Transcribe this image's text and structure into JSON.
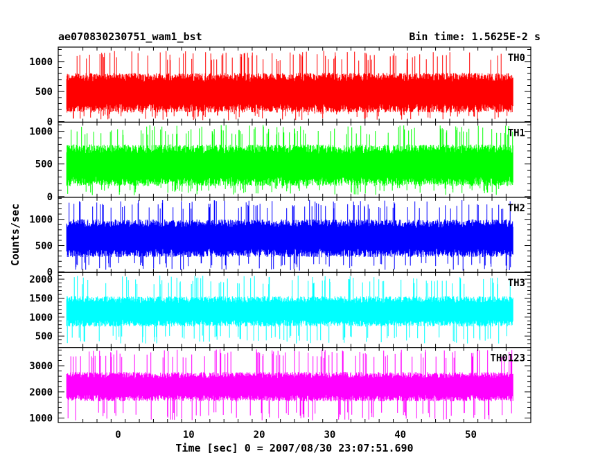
{
  "header": {
    "title_left": "ae070830230751_wam1_bst",
    "title_right": "Bin time: 1.5625E-2 s"
  },
  "axes": {
    "ylabel": "Counts/sec",
    "xlabel": "Time [sec] 0 = 2007/08/30 23:07:51.690"
  },
  "chart_data": {
    "type": "line",
    "x_range": [
      -8.5,
      58.5
    ],
    "x_data_range": [
      -7.3,
      56.0
    ],
    "x_ticks": [
      0,
      10,
      20,
      30,
      40,
      50
    ],
    "panels": [
      {
        "name": "TH0",
        "color": "#ff0000",
        "ylim": [
          -10,
          1240
        ],
        "y_ticks": [
          0,
          500,
          1000
        ],
        "baseline_approx": 480,
        "spread_approx": 330,
        "min_approx": 20,
        "max_approx": 1180
      },
      {
        "name": "TH1",
        "color": "#00ff00",
        "ylim": [
          -10,
          1140
        ],
        "y_ticks": [
          0,
          500,
          1000
        ],
        "baseline_approx": 480,
        "spread_approx": 320,
        "min_approx": 20,
        "max_approx": 1100
      },
      {
        "name": "TH2",
        "color": "#0000ff",
        "ylim": [
          -10,
          1420
        ],
        "y_ticks": [
          0,
          500,
          1000
        ],
        "baseline_approx": 640,
        "spread_approx": 360,
        "min_approx": 20,
        "max_approx": 1380
      },
      {
        "name": "TH3",
        "color": "#00ffff",
        "ylim": [
          200,
          2180
        ],
        "y_ticks": [
          500,
          1000,
          1500,
          2000
        ],
        "baseline_approx": 1150,
        "spread_approx": 400,
        "min_approx": 300,
        "max_approx": 2100
      },
      {
        "name": "TH0123",
        "color": "#ff00ff",
        "ylim": [
          830,
          3700
        ],
        "y_ticks": [
          1000,
          2000,
          3000
        ],
        "baseline_approx": 2200,
        "spread_approx": 560,
        "min_approx": 900,
        "max_approx": 3650
      }
    ]
  }
}
